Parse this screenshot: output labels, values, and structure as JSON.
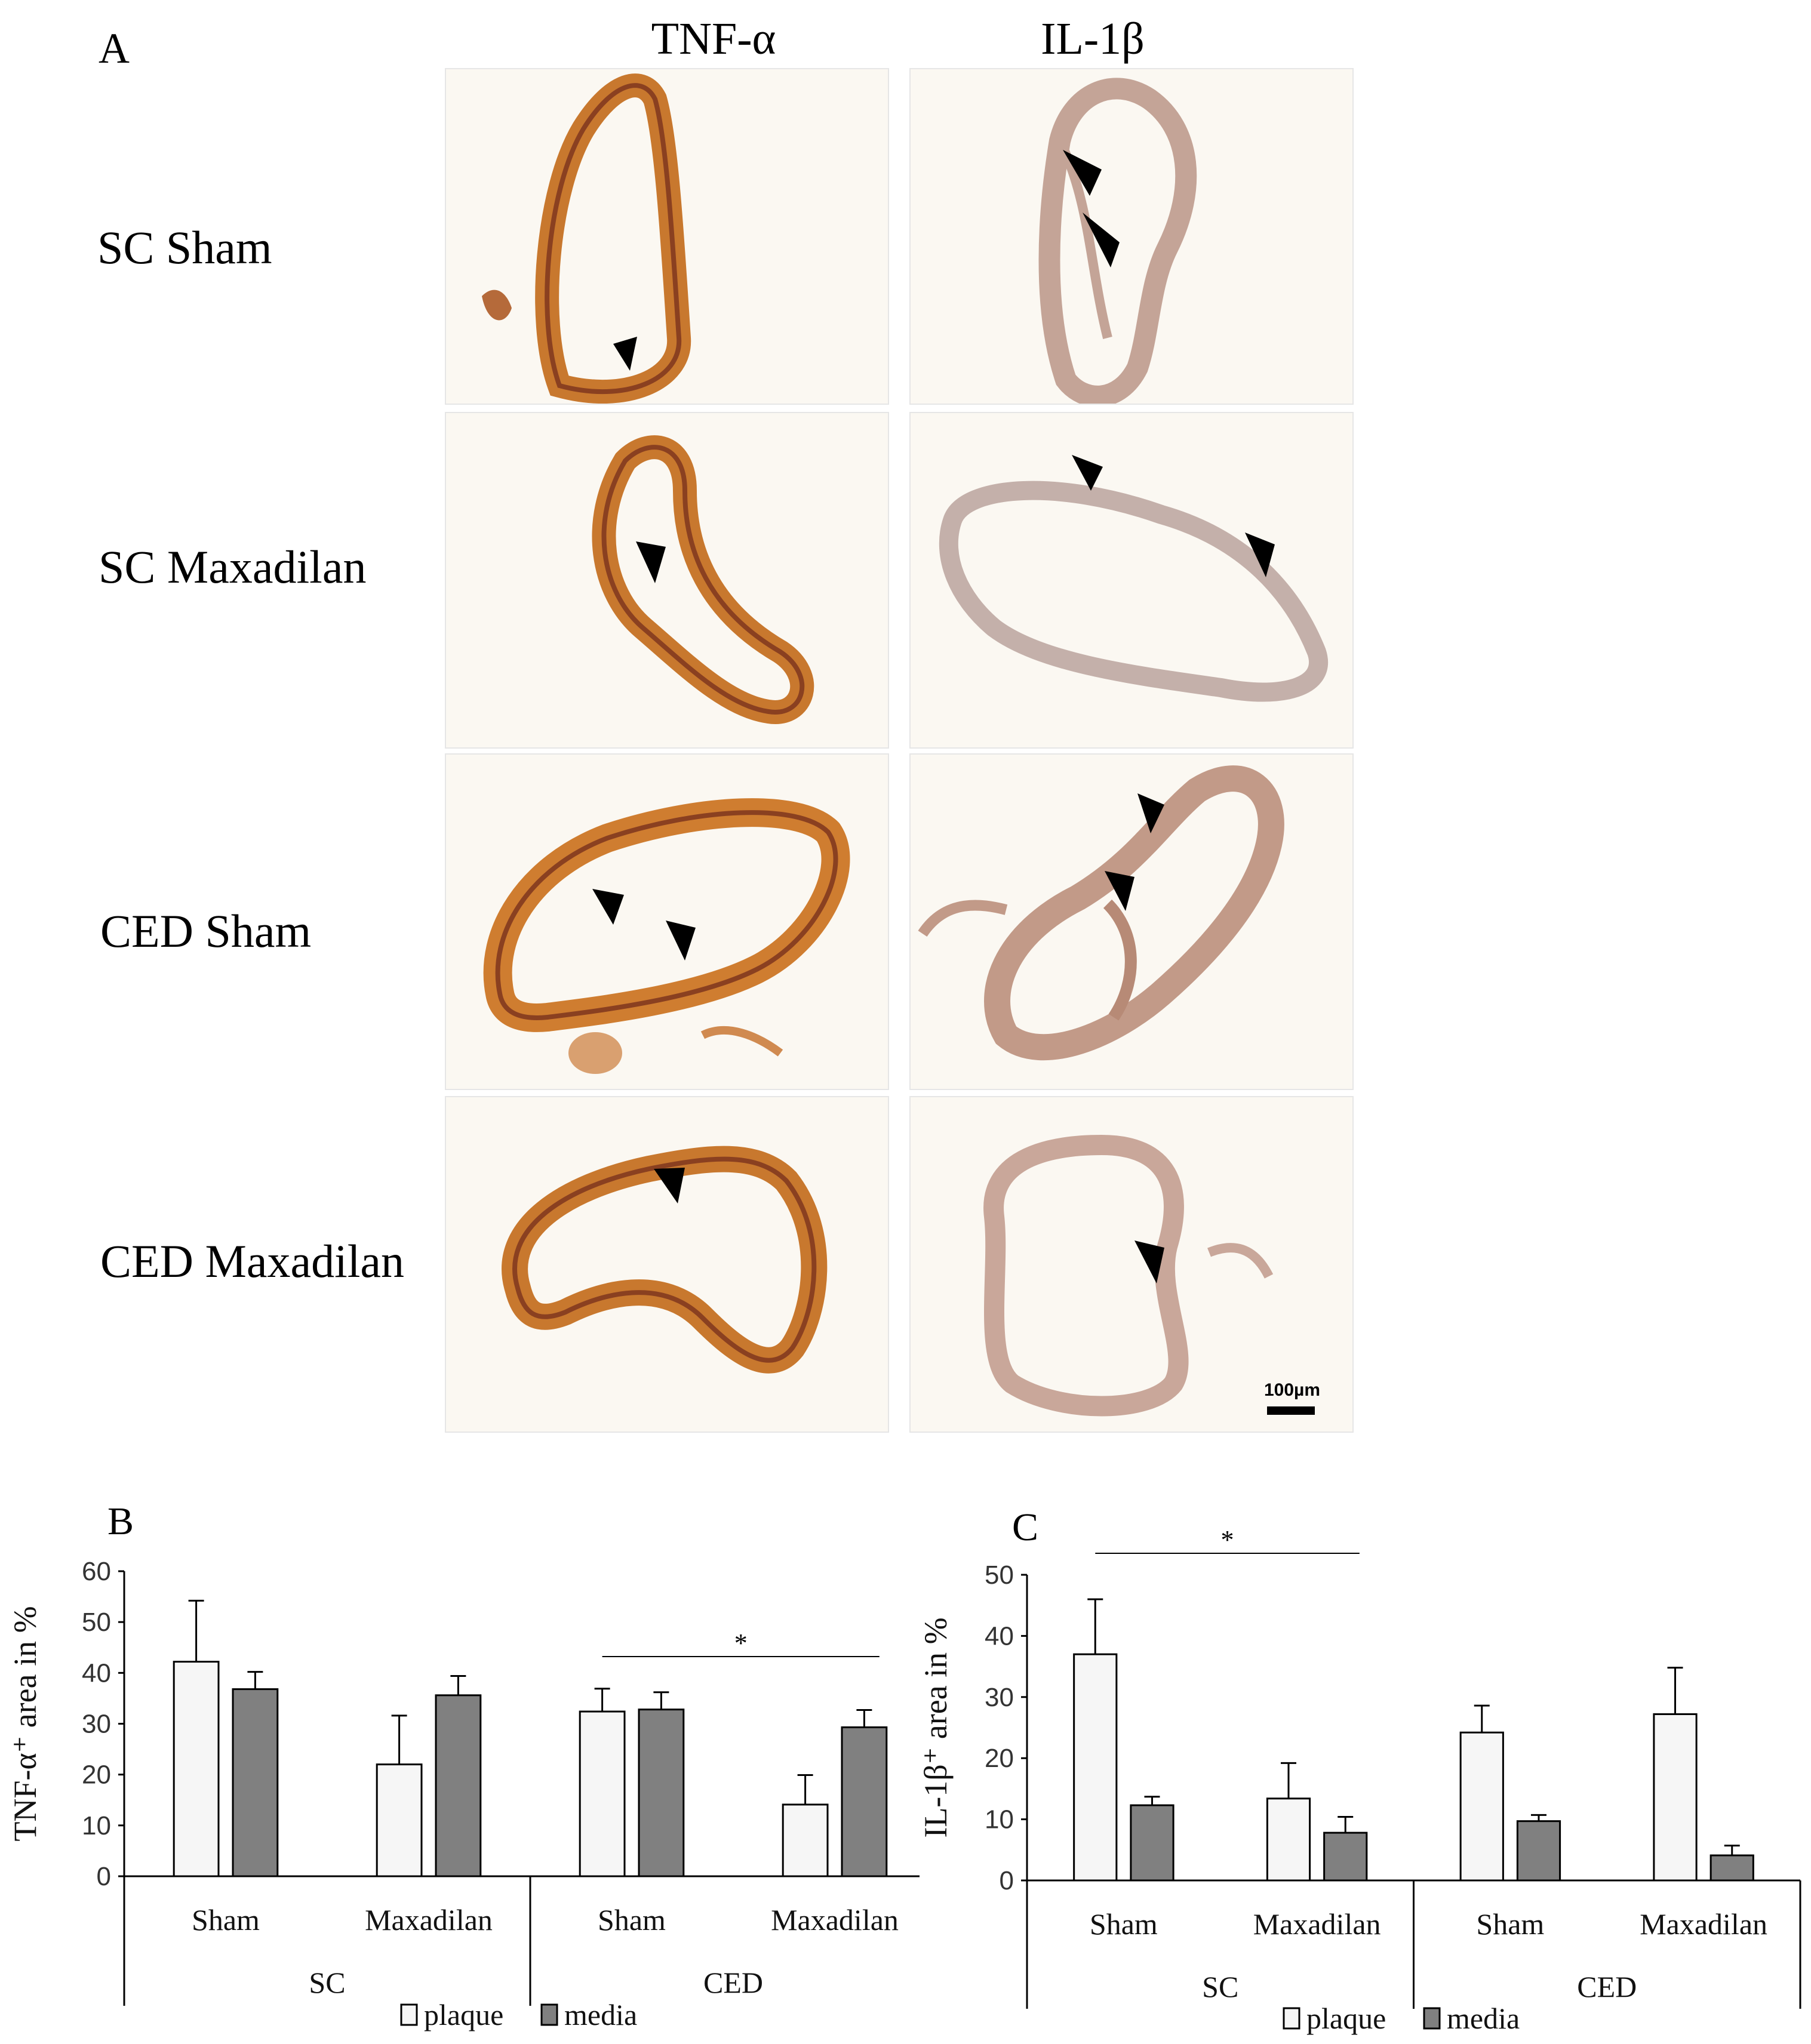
{
  "figure": {
    "panel_a_letter": "A",
    "columns": [
      "TNF-α",
      "IL-1β"
    ],
    "rows": [
      "SC Sham",
      "SC Maxadilan",
      "CED Sham",
      "CED Maxadilan"
    ],
    "scale_bar_label": "100µm",
    "stain_colors": {
      "tnf": "#c8782e",
      "il1": "#b9998c",
      "background": "#fbf8f2"
    }
  },
  "chart_data": [
    {
      "panel": "B",
      "type": "bar",
      "ylabel": "TNF-α⁺ area in %",
      "ylim": [
        0,
        60
      ],
      "yticks": [
        0,
        10,
        20,
        30,
        40,
        50,
        60
      ],
      "groups": [
        "SC",
        "CED"
      ],
      "categories": [
        "Sham",
        "Maxadilan",
        "Sham",
        "Maxadilan"
      ],
      "series": [
        {
          "name": "plaque",
          "color": "#f6f6f6",
          "values": [
            42.2,
            22.0,
            32.4,
            14.1
          ],
          "errors": [
            12.0,
            9.6,
            4.5,
            5.8
          ]
        },
        {
          "name": "media",
          "color": "#808080",
          "values": [
            36.8,
            35.6,
            32.8,
            29.3
          ],
          "errors": [
            3.4,
            3.8,
            3.4,
            3.4
          ]
        }
      ],
      "significance": {
        "label": "*",
        "between": [
          2,
          3
        ]
      }
    },
    {
      "panel": "C",
      "type": "bar",
      "ylabel": "IL-1β⁺ area in %",
      "ylim": [
        0,
        50
      ],
      "yticks": [
        0,
        10,
        20,
        30,
        40,
        50
      ],
      "groups": [
        "SC",
        "CED"
      ],
      "categories": [
        "Sham",
        "Maxadilan",
        "Sham",
        "Maxadilan"
      ],
      "series": [
        {
          "name": "plaque",
          "color": "#f6f6f6",
          "values": [
            37.0,
            13.4,
            24.2,
            27.2
          ],
          "errors": [
            9.0,
            5.8,
            4.4,
            7.6
          ]
        },
        {
          "name": "media",
          "color": "#808080",
          "values": [
            12.3,
            7.8,
            9.7,
            4.1
          ],
          "errors": [
            1.4,
            2.6,
            1.0,
            1.6
          ]
        }
      ],
      "significance": {
        "label": "*",
        "between": [
          0,
          1
        ]
      }
    }
  ]
}
